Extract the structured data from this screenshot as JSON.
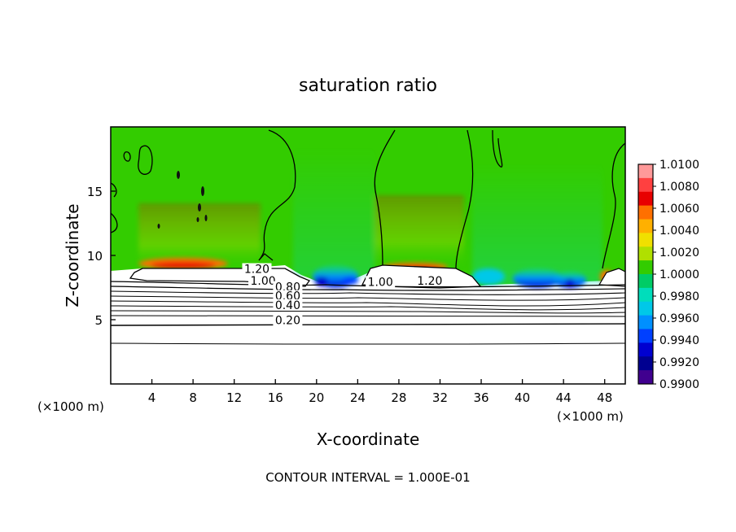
{
  "chart_data": {
    "type": "heatmap",
    "title": "saturation ratio",
    "xlabel": "X-coordinate",
    "ylabel": "Z-coordinate",
    "x_unit": "(×1000 m)",
    "y_unit": "(×1000 m)",
    "xlim": [
      0,
      50
    ],
    "ylim": [
      0,
      20
    ],
    "x_ticks": [
      4,
      8,
      12,
      16,
      20,
      24,
      28,
      32,
      36,
      40,
      44,
      48
    ],
    "y_ticks": [
      5,
      10,
      15
    ],
    "colorbar": {
      "min": 0.99,
      "max": 1.01,
      "labels": [
        "1.0100",
        "1.0080",
        "1.0060",
        "1.0040",
        "1.0020",
        "1.0000",
        "0.9980",
        "0.9960",
        "0.9940",
        "0.9920",
        "0.9900"
      ],
      "colors": [
        "#ff9999",
        "#ff4040",
        "#e80000",
        "#ff7000",
        "#ffb000",
        "#f0e000",
        "#b0e000",
        "#33cc00",
        "#00cc66",
        "#00ddbb",
        "#00c8e8",
        "#0090ff",
        "#0040ff",
        "#0000d0",
        "#000090",
        "#40008f"
      ]
    },
    "contour_labels": [
      {
        "text": "1.20",
        "x": 14.2,
        "z": 8.7
      },
      {
        "text": "1.00",
        "x": 14.8,
        "z": 7.8
      },
      {
        "text": "0.80",
        "x": 17.2,
        "z": 7.3
      },
      {
        "text": "0.60",
        "x": 17.2,
        "z": 6.6
      },
      {
        "text": "0.40",
        "x": 17.2,
        "z": 5.9
      },
      {
        "text": "0.20",
        "x": 17.2,
        "z": 4.7
      },
      {
        "text": "1.00",
        "x": 26.2,
        "z": 7.7
      },
      {
        "text": "1.20",
        "x": 31.0,
        "z": 7.8
      }
    ],
    "contour_interval_text": "CONTOUR INTERVAL = 1.000E-01"
  }
}
